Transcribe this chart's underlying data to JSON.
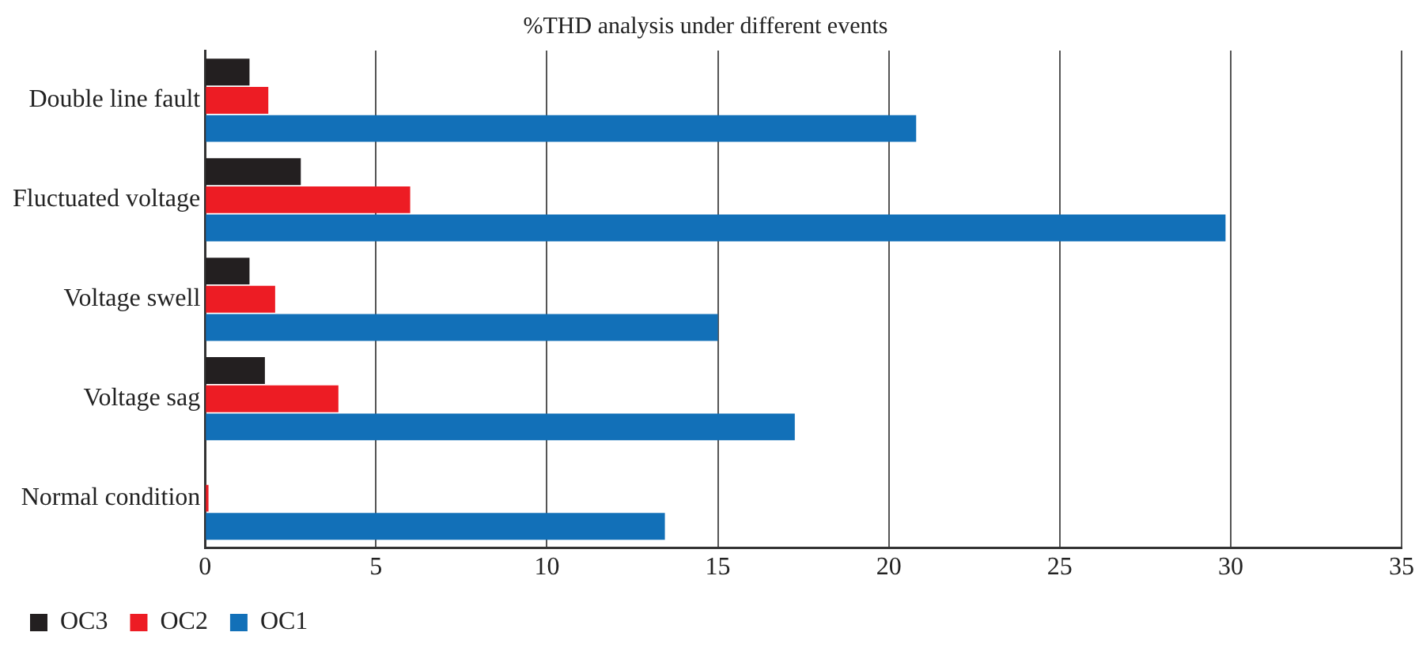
{
  "chart_data": {
    "type": "bar",
    "orientation": "horizontal",
    "title": "%THD analysis under different events",
    "categories": [
      "Double line fault",
      "Fluctuated voltage",
      "Voltage swell",
      "Voltage sag",
      "Normal condition"
    ],
    "series": [
      {
        "name": "OC3",
        "color": "#231f20",
        "values": [
          1.3,
          2.8,
          1.3,
          1.75,
          null
        ]
      },
      {
        "name": "OC2",
        "color": "#ed1c24",
        "values": [
          1.85,
          6.0,
          2.05,
          3.9,
          0.1
        ]
      },
      {
        "name": "OC1",
        "color": "#1270b8",
        "values": [
          20.8,
          29.85,
          15.0,
          17.25,
          13.45
        ]
      }
    ],
    "xlim": [
      0,
      35
    ],
    "xticks": [
      0,
      5,
      10,
      15,
      20,
      25,
      30,
      35
    ],
    "grid": "x",
    "legend": "bottom left"
  }
}
